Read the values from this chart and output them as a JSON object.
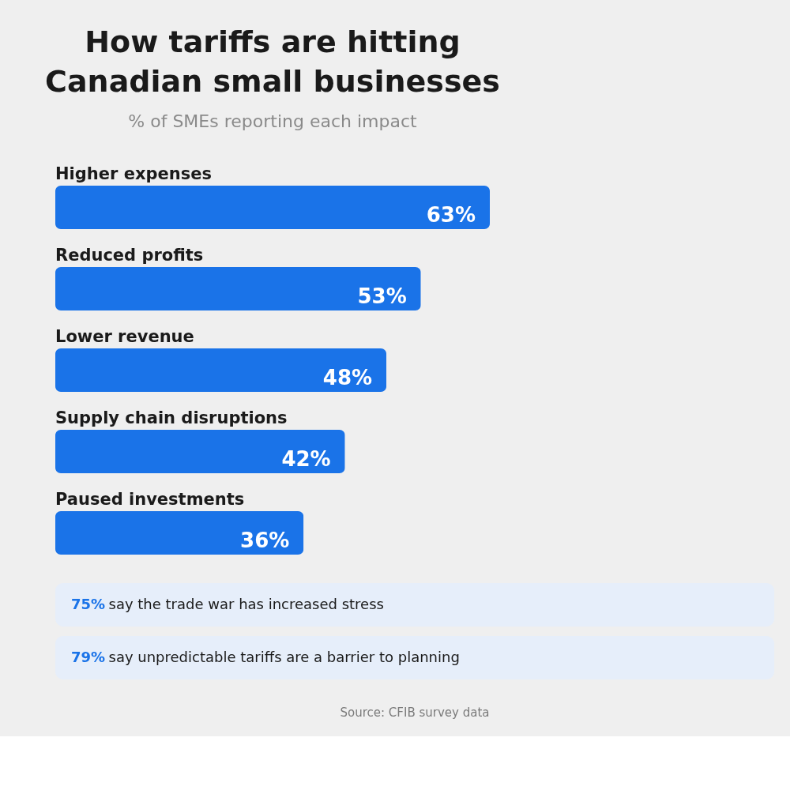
{
  "chart_data": {
    "type": "bar",
    "orientation": "horizontal",
    "title": "How tariffs are hitting Canadian small businesses",
    "subtitle": "% of SMEs reporting each impact",
    "categories": [
      "Higher expenses",
      "Reduced profits",
      "Lower revenue",
      "Supply chain disruptions",
      "Paused investments"
    ],
    "values": [
      63,
      53,
      48,
      42,
      36
    ],
    "color": "#1a73e8",
    "value_labels": [
      "63%",
      "53%",
      "48%",
      "42%",
      "36%"
    ],
    "annotations": [
      "75% say the trade war has increased stress",
      "79% say unpredictable tariffs are a barrier to planning",
      "Source: CFIB survey data"
    ]
  }
}
